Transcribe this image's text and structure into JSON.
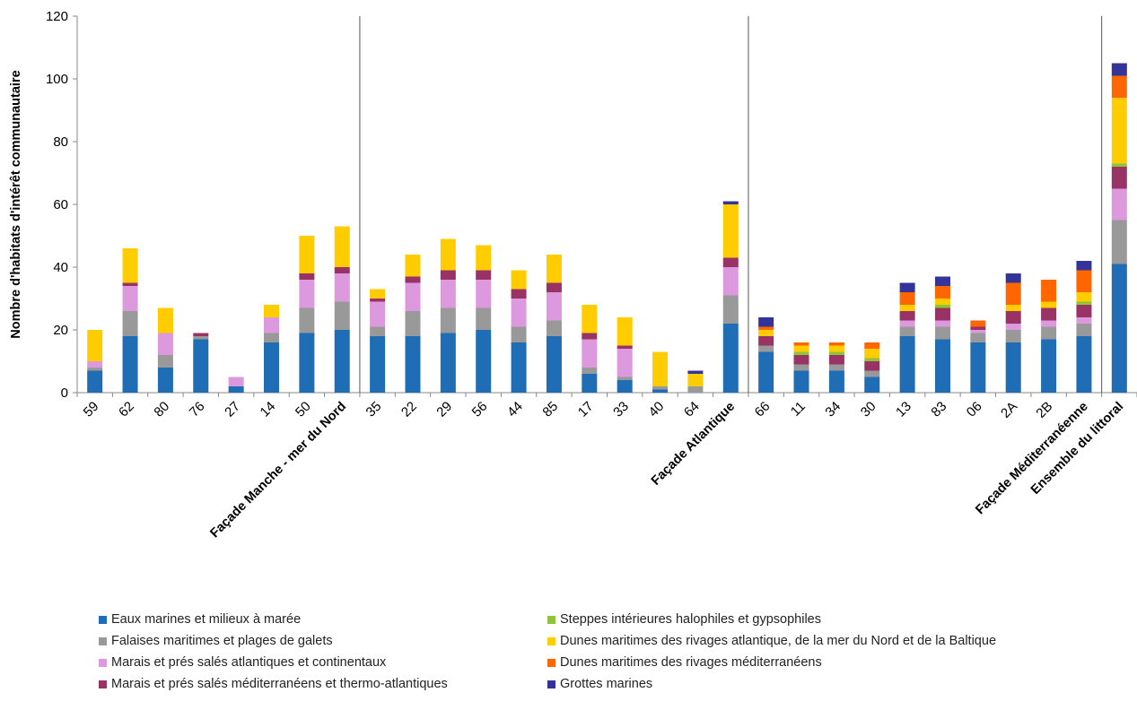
{
  "chart_data": {
    "type": "bar",
    "stacked": true,
    "title": "",
    "xlabel": "",
    "ylabel": "Nombre d'habitats d'intérêt communautaire",
    "ylim": [
      0,
      120
    ],
    "yticks": [
      0,
      20,
      40,
      60,
      80,
      100,
      120
    ],
    "grid": false,
    "legend_position": "bottom",
    "categories": [
      "59",
      "62",
      "80",
      "76",
      "27",
      "14",
      "50",
      "Façade Manche - mer du Nord",
      "35",
      "22",
      "29",
      "56",
      "44",
      "85",
      "17",
      "33",
      "40",
      "64",
      "Façade Atlantique",
      "66",
      "11",
      "34",
      "30",
      "13",
      "83",
      "06",
      "2A",
      "2B",
      "Façade Méditerranéenne",
      "Ensemble du littoral"
    ],
    "bold_categories": [
      "Façade Manche - mer du Nord",
      "Façade Atlantique",
      "Façade Méditerranéenne",
      "Ensemble du littoral"
    ],
    "group_separators_after": [
      "Façade Manche - mer du Nord",
      "Façade Atlantique",
      "Façade Méditerranéenne"
    ],
    "series": [
      {
        "name": "Eaux marines et milieux à marée",
        "color": "#1f6db5",
        "values": [
          7,
          18,
          8,
          17,
          2,
          16,
          19,
          20,
          18,
          18,
          19,
          20,
          16,
          18,
          6,
          4,
          1,
          0,
          22,
          13,
          7,
          7,
          5,
          18,
          17,
          16,
          16,
          17,
          18,
          41
        ]
      },
      {
        "name": "Falaises maritimes et plages de galets",
        "color": "#999999",
        "values": [
          1,
          8,
          4,
          1,
          0,
          3,
          8,
          9,
          3,
          8,
          8,
          7,
          5,
          5,
          2,
          1,
          1,
          2,
          9,
          2,
          2,
          2,
          2,
          3,
          4,
          3,
          4,
          4,
          4,
          14
        ]
      },
      {
        "name": "Marais et prés salés atlantiques et continentaux",
        "color": "#dd99dd",
        "values": [
          2,
          8,
          7,
          0,
          3,
          5,
          9,
          9,
          8,
          9,
          9,
          9,
          9,
          9,
          9,
          9,
          0,
          0,
          9,
          0,
          0,
          0,
          0,
          2,
          2,
          1,
          2,
          2,
          2,
          10
        ]
      },
      {
        "name": "Marais et prés salés méditerranéens et thermo-atlantiques",
        "color": "#993366",
        "values": [
          0,
          1,
          0,
          1,
          0,
          0,
          2,
          2,
          1,
          2,
          3,
          3,
          3,
          3,
          2,
          1,
          0,
          0,
          3,
          3,
          3,
          3,
          3,
          3,
          4,
          1,
          4,
          4,
          4,
          7
        ]
      },
      {
        "name": "Steppes intérieures halophiles et gypsophiles",
        "color": "#8fc33a",
        "values": [
          0,
          0,
          0,
          0,
          0,
          0,
          0,
          0,
          0,
          0,
          0,
          0,
          0,
          0,
          0,
          0,
          0,
          0,
          0,
          0,
          1,
          1,
          1,
          0,
          1,
          0,
          0,
          0,
          1,
          1
        ]
      },
      {
        "name": "Dunes maritimes des rivages atlantique, de la mer du Nord et de la Baltique",
        "color": "#ffcc00",
        "values": [
          10,
          11,
          8,
          0,
          0,
          4,
          12,
          13,
          3,
          7,
          10,
          8,
          6,
          9,
          9,
          9,
          11,
          4,
          17,
          2,
          2,
          2,
          3,
          2,
          2,
          0,
          2,
          2,
          3,
          21
        ]
      },
      {
        "name": "Dunes maritimes des rivages méditerranéens",
        "color": "#ff6600",
        "values": [
          0,
          0,
          0,
          0,
          0,
          0,
          0,
          0,
          0,
          0,
          0,
          0,
          0,
          0,
          0,
          0,
          0,
          0,
          0,
          1,
          1,
          1,
          2,
          4,
          4,
          2,
          7,
          7,
          7,
          7
        ]
      },
      {
        "name": "Grottes marines",
        "color": "#333399",
        "values": [
          0,
          0,
          0,
          0,
          0,
          0,
          0,
          0,
          0,
          0,
          0,
          0,
          0,
          0,
          0,
          0,
          0,
          1,
          1,
          3,
          0,
          0,
          0,
          3,
          3,
          0,
          3,
          0,
          3,
          4
        ]
      }
    ]
  }
}
